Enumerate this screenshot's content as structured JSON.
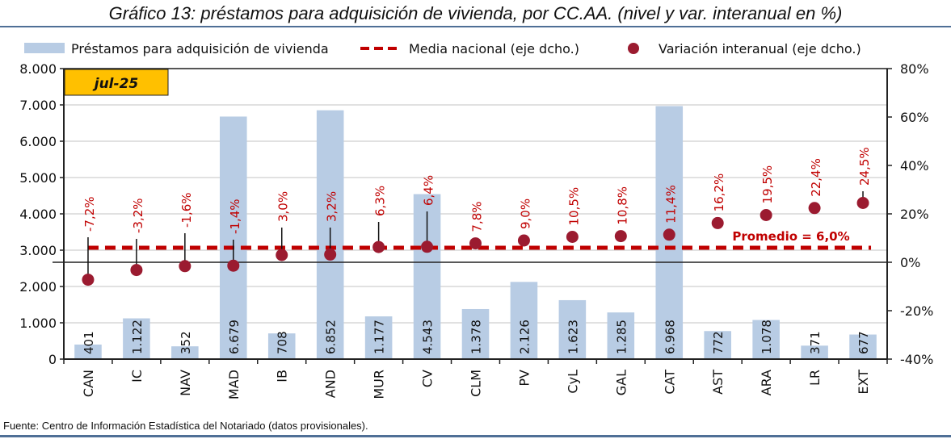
{
  "title": "Gráfico 13: préstamos para adquisición de vivienda, por CC.AA. (nivel y var. interanual en %)",
  "source": "Fuente: Centro de Información Estadística del Notariado (datos provisionales).",
  "colors": {
    "bar": "#b8cce4",
    "dot": "#9b1b30",
    "mean_line": "#c00000",
    "label": "#c00000",
    "badge": "#ffc000",
    "rule": "#4f6f96"
  },
  "chart_data": {
    "type": "bar",
    "title": "Gráfico 13: préstamos para adquisición de vivienda, por CC.AA. (nivel y var. interanual en %)",
    "period_badge": "jul-25",
    "categories": [
      "CAN",
      "IC",
      "NAV",
      "MAD",
      "IB",
      "AND",
      "MUR",
      "CV",
      "CLM",
      "PV",
      "CyL",
      "GAL",
      "CAT",
      "AST",
      "ARA",
      "LR",
      "EXT"
    ],
    "series": [
      {
        "name": "Préstamos para adquisición de vivienda",
        "type": "bar",
        "axis": "left",
        "values": [
          401,
          1122,
          352,
          6679,
          708,
          6852,
          1177,
          4543,
          1378,
          2126,
          1623,
          1285,
          6968,
          772,
          1078,
          371,
          677
        ],
        "labels": [
          "401",
          "1.122",
          "352",
          "6.679",
          "708",
          "6.852",
          "1.177",
          "4.543",
          "1.378",
          "2.126",
          "1.623",
          "1.285",
          "6.968",
          "772",
          "1.078",
          "371",
          "677"
        ]
      },
      {
        "name": "Media nacional (eje dcho.)",
        "type": "line",
        "style": "dashed",
        "axis": "right",
        "value": 6.0
      },
      {
        "name": "Variación interanual (eje dcho.)",
        "type": "scatter",
        "axis": "right",
        "values": [
          -7.2,
          -3.2,
          -1.6,
          -1.4,
          3.0,
          3.2,
          6.3,
          6.4,
          7.8,
          9.0,
          10.5,
          10.8,
          11.4,
          16.2,
          19.5,
          22.4,
          24.5
        ],
        "labels": [
          "-7,2%",
          "-3,2%",
          "-1,6%",
          "-1,4%",
          "3,0%",
          "3,2%",
          "6,3%",
          "6,4%",
          "7,8%",
          "9,0%",
          "10,5%",
          "10,8%",
          "11,4%",
          "16,2%",
          "19,5%",
          "22,4%",
          "24,5%"
        ]
      }
    ],
    "annotation": "Promedio = 6,0%",
    "left_axis": {
      "ylim": [
        0,
        8000
      ],
      "ticks": [
        0,
        1000,
        2000,
        3000,
        4000,
        5000,
        6000,
        7000,
        8000
      ],
      "tick_labels": [
        "0",
        "1.000",
        "2.000",
        "3.000",
        "4.000",
        "5.000",
        "6.000",
        "7.000",
        "8.000"
      ]
    },
    "right_axis": {
      "ylim": [
        -40,
        80
      ],
      "ticks": [
        -40,
        -20,
        0,
        20,
        40,
        60,
        80
      ],
      "tick_labels": [
        "-40%",
        "-20%",
        "0%",
        "20%",
        "40%",
        "60%",
        "80%"
      ]
    },
    "grid": true,
    "legend_position": "top",
    "xlabel": "",
    "ylabel": ""
  }
}
